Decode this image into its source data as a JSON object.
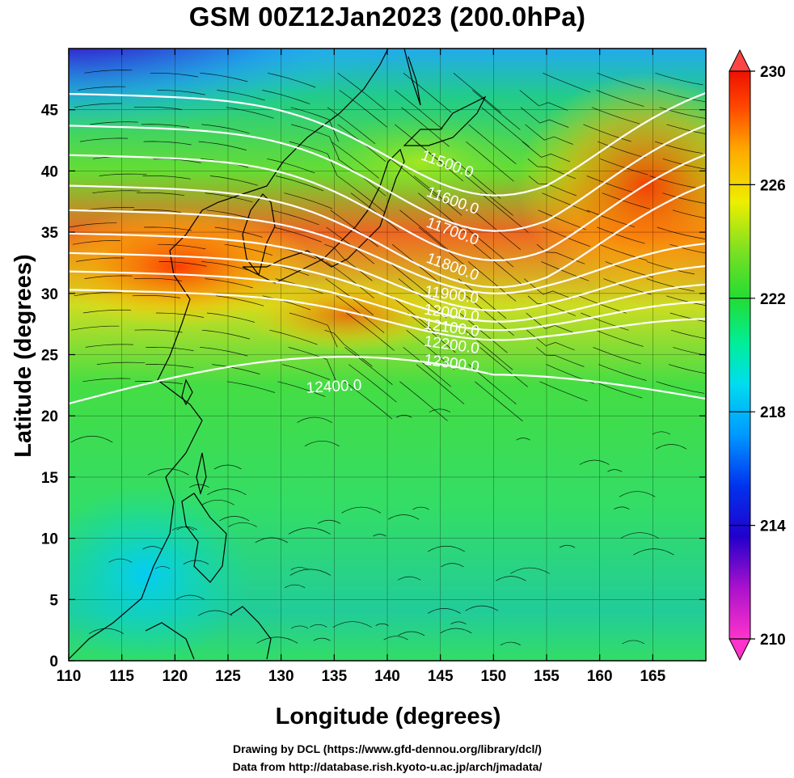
{
  "title": "GSM 00Z12Jan2023 (200.0hPa)",
  "xlabel": "Longitude (degrees)",
  "ylabel": "Latitude  (degrees)",
  "credit_line1": "Drawing by DCL (https://www.gfd-dennou.org/library/dcl/)",
  "credit_line2": "Data from http://database.rish.kyoto-u.ac.jp/arch/jmadata/",
  "map": {
    "lon_range": [
      110,
      170
    ],
    "lat_range": [
      0,
      50
    ],
    "x_ticks": [
      "110",
      "115",
      "120",
      "125",
      "130",
      "135",
      "140",
      "145",
      "150",
      "155",
      "160",
      "165"
    ],
    "y_ticks": [
      "0",
      "5",
      "10",
      "15",
      "20",
      "25",
      "30",
      "35",
      "40",
      "45"
    ],
    "field": "temperature (shaded) with geopotential height contours and wind streamlines"
  },
  "colorbar": {
    "ticks": [
      "230",
      "226",
      "222",
      "218",
      "214",
      "210"
    ],
    "min": 210,
    "max": 230,
    "colors": [
      "#ff33cc",
      "#7700cc",
      "#0000dd",
      "#0088ff",
      "#00ccff",
      "#00e0b0",
      "#22dd44",
      "#88e020",
      "#ffee00",
      "#ffaa00",
      "#ff4400",
      "#ee1100"
    ]
  },
  "contours": [
    {
      "label": "11500.0"
    },
    {
      "label": "11600.0"
    },
    {
      "label": "11700.0"
    },
    {
      "label": "11800.0"
    },
    {
      "label": "11900.0"
    },
    {
      "label": "12000.0"
    },
    {
      "label": "12100.0"
    },
    {
      "label": "12200.0"
    },
    {
      "label": "12300.0"
    },
    {
      "label": "12400.0"
    }
  ]
}
